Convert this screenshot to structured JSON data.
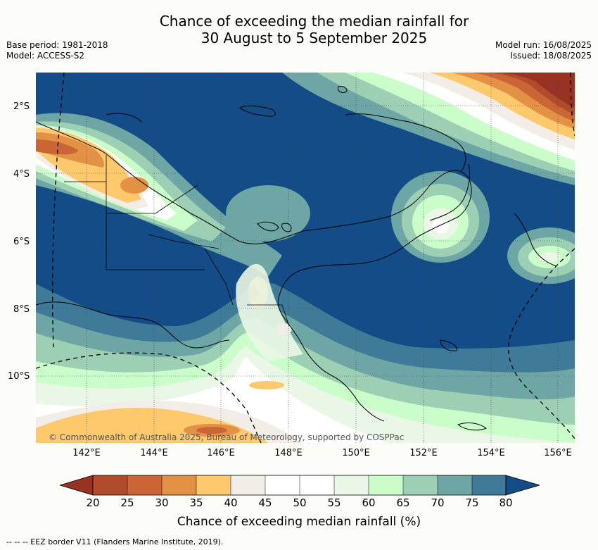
{
  "title_line1": "Chance of exceeding the median rainfall for",
  "title_line2": "30 August to 5 September 2025",
  "meta_left": {
    "base_period": "Base period: 1981-2018",
    "model": "Model: ACCESS-S2"
  },
  "meta_right": {
    "model_run": "Model run: 16/08/2025",
    "issued": "Issued: 18/08/2025"
  },
  "latitude_labels": [
    "2°S",
    "4°S",
    "6°S",
    "8°S",
    "10°S"
  ],
  "longitude_labels": [
    "142°E",
    "144°E",
    "146°E",
    "148°E",
    "150°E",
    "152°E",
    "154°E",
    "156°E"
  ],
  "copyright": "© Commonwealth of Australia 2025, Bureau of Meteorology, supported by COSPPac",
  "colorbar": {
    "ticks": [
      "20",
      "25",
      "30",
      "35",
      "40",
      "45",
      "50",
      "55",
      "60",
      "65",
      "70",
      "75",
      "80"
    ],
    "colors": {
      "below_20": "#983323",
      "20_25": "#b04c2a",
      "25_30": "#cb6535",
      "30_35": "#e29145",
      "35_40": "#fdc96c",
      "40_45": "#f2ede7",
      "45_50": "#ffffff",
      "50_55": "#ffffff",
      "55_60": "#eaf6e6",
      "60_65": "#cbfdcb",
      "65_70": "#9ccfb4",
      "70_75": "#6da6a4",
      "75_80": "#3f7a98",
      "above_80": "#144c87"
    },
    "title": "Chance of exceeding median rainfall (%)"
  },
  "eez_legend": "-- --  -- EEZ border V11 (Flanders Marine Institute, 2019)."
}
